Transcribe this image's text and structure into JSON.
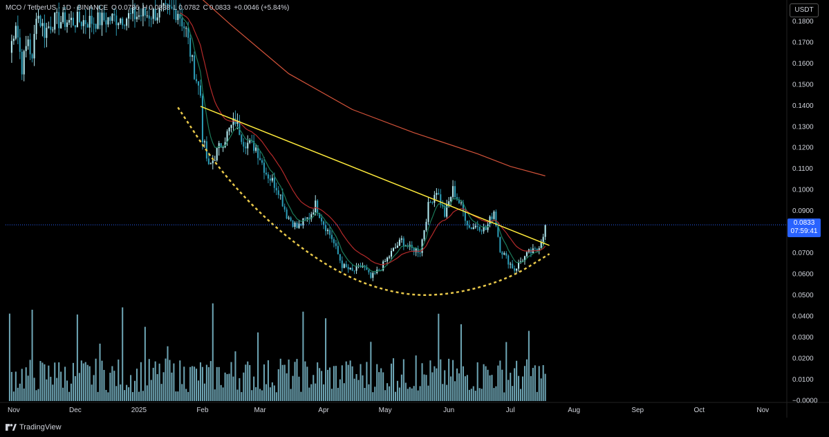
{
  "header": {
    "symbol": "MCO / TetherUS · 1D · BINANCE",
    "open_label": "O",
    "open": "0.0786",
    "high_label": "H",
    "high": "0.0838",
    "low_label": "L",
    "low": "0.0782",
    "close_label": "C",
    "close": "0.0833",
    "change": "+0.0046 (+5.84%)"
  },
  "currency_button": "USDT",
  "last_price": {
    "value": "0.0833",
    "countdown": "07:59:41"
  },
  "brand": "TradingView",
  "colors": {
    "background": "#000000",
    "candle_up": "#b2ebf2",
    "candle_down": "#2b9bb5",
    "volume": "#7fbfd1",
    "ema_short": "#1b7a5a",
    "ema_mid": "#b52a2a",
    "ema_long": "#d4533a",
    "trendline": "#ffeb3b",
    "arc": "#e8c84a",
    "price_line": "#2962ff"
  },
  "chart_data": {
    "type": "candlestick",
    "y_tick_labels": [
      "0.1800",
      "0.1700",
      "0.1600",
      "0.1500",
      "0.1400",
      "0.1300",
      "0.1200",
      "0.1100",
      "0.1000",
      "0.0900",
      "0.0800",
      "0.0700",
      "0.0600",
      "0.0500",
      "0.0400",
      "0.0300",
      "0.0200",
      "0.0100",
      "−0.0000"
    ],
    "y_ticks": [
      0.18,
      0.17,
      0.16,
      0.15,
      0.14,
      0.13,
      0.12,
      0.11,
      0.1,
      0.09,
      0.08,
      0.07,
      0.06,
      0.05,
      0.04,
      0.03,
      0.02,
      0.01,
      0.0
    ],
    "x_tick_labels": [
      "Nov",
      "Dec",
      "2025",
      "Feb",
      "Mar",
      "Apr",
      "May",
      "Jun",
      "Jul",
      "Aug",
      "Sep",
      "Oct",
      "Nov"
    ],
    "x_ticks": [
      "2024-11-01",
      "2024-12-01",
      "2025-01-01",
      "2025-02-01",
      "2025-03-01",
      "2025-04-01",
      "2025-05-01",
      "2025-06-01",
      "2025-07-01",
      "2025-08-01",
      "2025-09-01",
      "2025-10-01",
      "2025-11-01"
    ],
    "x_range": [
      "2024-10-28",
      "2025-11-10"
    ],
    "y_range": [
      -0.001,
      0.188
    ],
    "price_anchors": [
      [
        "2024-10-30",
        0.165
      ],
      [
        "2024-11-02",
        0.18
      ],
      [
        "2024-11-05",
        0.158
      ],
      [
        "2024-11-08",
        0.172
      ],
      [
        "2024-11-10",
        0.16
      ],
      [
        "2024-11-12",
        0.185
      ],
      [
        "2024-11-16",
        0.175
      ],
      [
        "2024-11-20",
        0.18
      ],
      [
        "2024-12-10",
        0.18
      ],
      [
        "2025-01-20",
        0.185
      ],
      [
        "2025-01-24",
        0.175
      ],
      [
        "2025-01-27",
        0.16
      ],
      [
        "2025-01-31",
        0.145
      ],
      [
        "2025-02-01",
        0.125
      ],
      [
        "2025-02-04",
        0.11
      ],
      [
        "2025-02-08",
        0.118
      ],
      [
        "2025-02-14",
        0.128
      ],
      [
        "2025-02-17",
        0.133
      ],
      [
        "2025-02-21",
        0.123
      ],
      [
        "2025-02-27",
        0.12
      ],
      [
        "2025-03-04",
        0.108
      ],
      [
        "2025-03-10",
        0.1
      ],
      [
        "2025-03-14",
        0.088
      ],
      [
        "2025-03-19",
        0.082
      ],
      [
        "2025-03-25",
        0.087
      ],
      [
        "2025-03-28",
        0.093
      ],
      [
        "2025-04-01",
        0.084
      ],
      [
        "2025-04-05",
        0.077
      ],
      [
        "2025-04-10",
        0.064
      ],
      [
        "2025-04-15",
        0.061
      ],
      [
        "2025-04-20",
        0.064
      ],
      [
        "2025-04-24",
        0.058
      ],
      [
        "2025-04-29",
        0.063
      ],
      [
        "2025-05-04",
        0.07
      ],
      [
        "2025-05-09",
        0.076
      ],
      [
        "2025-05-13",
        0.072
      ],
      [
        "2025-05-18",
        0.071
      ],
      [
        "2025-05-22",
        0.092
      ],
      [
        "2025-05-26",
        0.1
      ],
      [
        "2025-05-30",
        0.088
      ],
      [
        "2025-06-03",
        0.1
      ],
      [
        "2025-06-07",
        0.092
      ],
      [
        "2025-06-11",
        0.082
      ],
      [
        "2025-06-15",
        0.083
      ],
      [
        "2025-06-19",
        0.081
      ],
      [
        "2025-06-23",
        0.09
      ],
      [
        "2025-06-26",
        0.072
      ],
      [
        "2025-06-30",
        0.066
      ],
      [
        "2025-07-03",
        0.062
      ],
      [
        "2025-07-06",
        0.066
      ],
      [
        "2025-07-10",
        0.07
      ],
      [
        "2025-07-14",
        0.071
      ],
      [
        "2025-07-17",
        0.079
      ],
      [
        "2025-07-18",
        0.0833
      ]
    ],
    "ema_long_points": [
      [
        "2025-01-23",
        0.198
      ],
      [
        "2025-02-15",
        0.178
      ],
      [
        "2025-03-15",
        0.155
      ],
      [
        "2025-04-15",
        0.138
      ],
      [
        "2025-05-15",
        0.127
      ],
      [
        "2025-06-15",
        0.117
      ],
      [
        "2025-07-01",
        0.111
      ],
      [
        "2025-07-18",
        0.1065
      ]
    ],
    "trendline": [
      [
        "2025-01-31",
        0.1395
      ],
      [
        "2025-07-20",
        0.0735
      ]
    ],
    "arc_points": [
      [
        "2025-01-20",
        0.139
      ],
      [
        "2025-02-10",
        0.108
      ],
      [
        "2025-03-10",
        0.08
      ],
      [
        "2025-04-10",
        0.059
      ],
      [
        "2025-05-10",
        0.0495
      ],
      [
        "2025-06-05",
        0.0505
      ],
      [
        "2025-07-01",
        0.058
      ],
      [
        "2025-07-20",
        0.0695
      ]
    ],
    "volume_scale_max": 0.047,
    "last_price": 0.0833
  }
}
